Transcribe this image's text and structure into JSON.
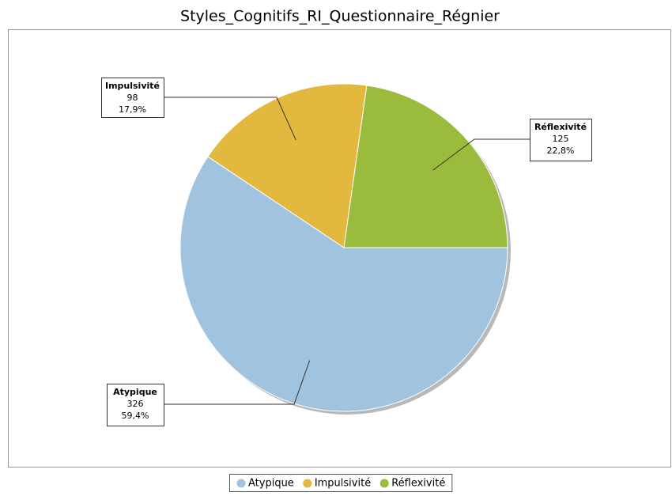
{
  "chart_data": {
    "type": "pie",
    "title": "Styles_Cognitifs_RI_Questionnaire_Régnier",
    "categories": [
      "Atypique",
      "Impulsivité",
      "Réflexivité"
    ],
    "values": [
      326,
      98,
      125
    ],
    "percent_labels": [
      "59,4%",
      "17,9%",
      "22,8%"
    ],
    "colors": [
      "#a0c3df",
      "#e2b83f",
      "#9bbb3d"
    ],
    "legend": "bottom"
  }
}
